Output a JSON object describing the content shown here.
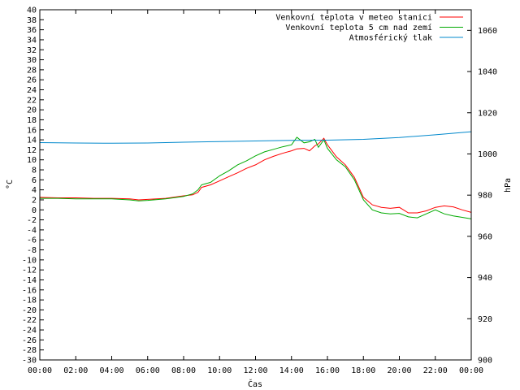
{
  "chart_data": {
    "type": "line",
    "xlabel": "Čas",
    "ylabel_left": "°C",
    "ylabel_right": "hPa",
    "x_ticks": [
      "00:00",
      "02:00",
      "04:00",
      "06:00",
      "08:00",
      "10:00",
      "12:00",
      "14:00",
      "16:00",
      "18:00",
      "20:00",
      "22:00",
      "00:00"
    ],
    "xlim_hours": [
      0,
      24
    ],
    "ylim_left": [
      -30,
      40
    ],
    "ylim_right": [
      900,
      1070
    ],
    "y_left_ticks": [
      40,
      38,
      36,
      34,
      32,
      30,
      28,
      26,
      24,
      22,
      20,
      18,
      16,
      14,
      12,
      10,
      8,
      6,
      4,
      2,
      0,
      -2,
      -4,
      -6,
      -8,
      -10,
      -12,
      -14,
      -16,
      -18,
      -20,
      -22,
      -24,
      -26,
      -28,
      -30
    ],
    "y_right_ticks": [
      1060,
      1040,
      1020,
      1000,
      980,
      960,
      940,
      920,
      900
    ],
    "legend_position": "top-right",
    "series": [
      {
        "name": "Venkovní teplota v meteo stanici",
        "color": "#ff0000",
        "axis": "left",
        "x": [
          0,
          1,
          2,
          3,
          4,
          5,
          5.5,
          6,
          7,
          8,
          8.5,
          8.8,
          9,
          9.5,
          10,
          10.5,
          11,
          11.5,
          12,
          12.5,
          13,
          13.5,
          14,
          14.3,
          14.7,
          15,
          15.3,
          15.5,
          15.8,
          16,
          16.5,
          17,
          17.5,
          18,
          18.5,
          19,
          19.5,
          20,
          20.5,
          21,
          21.5,
          22,
          22.5,
          23,
          23.5,
          24
        ],
        "values": [
          2.5,
          2.4,
          2.4,
          2.3,
          2.3,
          2.2,
          2.0,
          2.1,
          2.3,
          2.8,
          3.0,
          3.5,
          4.5,
          5.0,
          5.8,
          6.6,
          7.4,
          8.3,
          9.0,
          10.0,
          10.7,
          11.3,
          11.8,
          12.2,
          12.3,
          11.8,
          12.8,
          13.2,
          14.3,
          13.0,
          10.6,
          9.0,
          6.5,
          2.5,
          1.0,
          0.5,
          0.3,
          0.5,
          -0.6,
          -0.6,
          -0.2,
          0.5,
          0.8,
          0.6,
          0.0,
          -0.5
        ]
      },
      {
        "name": "Venkovní teplota 5 cm nad zemí",
        "color": "#00aa00",
        "axis": "left",
        "x": [
          0,
          1,
          2,
          3,
          4,
          5,
          5.5,
          6,
          7,
          8,
          8.5,
          8.8,
          9,
          9.5,
          10,
          10.5,
          11,
          11.5,
          12,
          12.5,
          13,
          13.5,
          14,
          14.3,
          14.7,
          15,
          15.3,
          15.5,
          15.8,
          16,
          16.5,
          17,
          17.5,
          18,
          18.5,
          19,
          19.5,
          20,
          20.5,
          21,
          21.5,
          22,
          22.5,
          23,
          23.5,
          24
        ],
        "values": [
          2.3,
          2.3,
          2.2,
          2.2,
          2.2,
          2.0,
          1.8,
          1.9,
          2.2,
          2.7,
          3.2,
          4.0,
          5.0,
          5.5,
          6.8,
          7.8,
          9.0,
          9.8,
          10.8,
          11.6,
          12.1,
          12.6,
          13.0,
          14.5,
          13.4,
          13.6,
          14.1,
          12.5,
          14.0,
          12.3,
          10.0,
          8.6,
          6.0,
          2.0,
          0.0,
          -0.6,
          -0.8,
          -0.7,
          -1.4,
          -1.6,
          -0.8,
          0.0,
          -0.8,
          -1.2,
          -1.5,
          -1.8
        ]
      },
      {
        "name": "Atmosférický tlak",
        "color": "#0088cc",
        "axis": "right",
        "x": [
          0,
          2,
          4,
          6,
          8,
          10,
          12,
          14,
          16,
          18,
          20,
          22,
          24
        ],
        "values": [
          1005.5,
          1005.3,
          1005.2,
          1005.3,
          1005.7,
          1006.0,
          1006.3,
          1006.6,
          1006.7,
          1007.1,
          1008.0,
          1009.3,
          1010.8
        ]
      }
    ]
  }
}
